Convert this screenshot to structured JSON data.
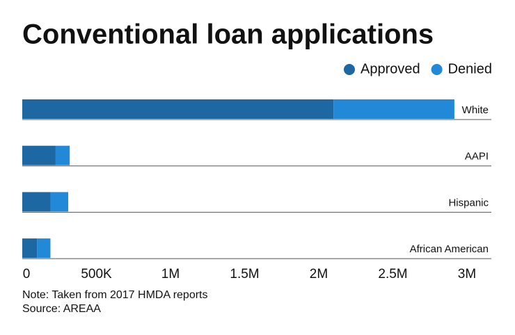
{
  "chart_data": {
    "type": "stacked-bar",
    "orientation": "horizontal",
    "title": "Conventional loan applications",
    "categories": [
      "White",
      "AAPI",
      "Hispanic",
      "African American"
    ],
    "series": [
      {
        "name": "Approved",
        "color": "#1d67a3",
        "values": [
          2100000,
          225000,
          190000,
          100000
        ]
      },
      {
        "name": "Denied",
        "color": "#2189d8",
        "values": [
          815000,
          95000,
          120000,
          90000
        ]
      }
    ],
    "xlim": [
      0,
      3000000
    ],
    "xticks": [
      0,
      {
        "value": 500000,
        "label": "500K"
      },
      {
        "value": 1000000,
        "label": "1M"
      },
      {
        "value": 1500000,
        "label": "1.5M"
      },
      {
        "value": 2000000,
        "label": "2M"
      },
      {
        "value": 2500000,
        "label": "2.5M"
      },
      {
        "value": 3000000,
        "label": "3M"
      }
    ],
    "legend": "top-right",
    "notes": [
      "Note: Taken from 2017 HMDA reports",
      "Source: AREAA"
    ]
  }
}
